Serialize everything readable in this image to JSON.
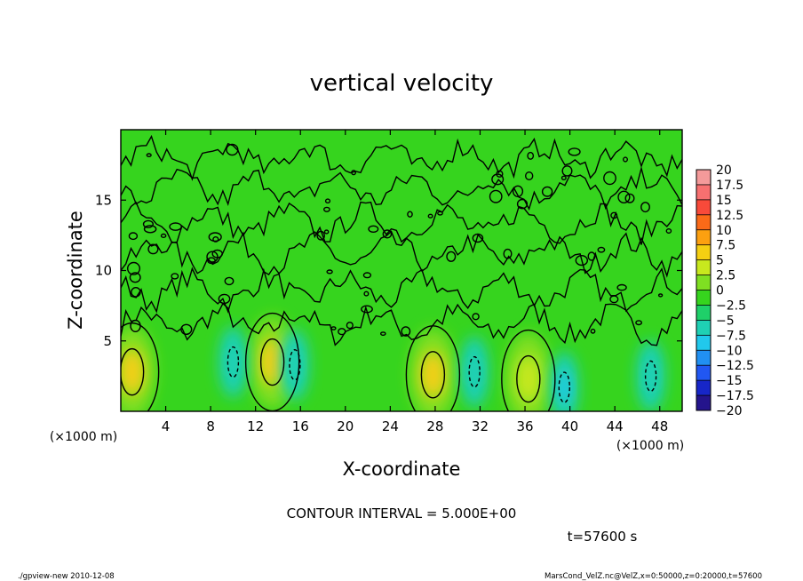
{
  "chart_data": {
    "type": "heatmap",
    "title": "vertical velocity",
    "xlabel": "X-coordinate",
    "ylabel": "Z-coordinate",
    "x_unit": "(×1000 m)",
    "y_unit": "(×1000 m)",
    "xlim": [
      0,
      50
    ],
    "ylim": [
      0,
      20
    ],
    "x_ticks": [
      4,
      8,
      12,
      16,
      20,
      24,
      28,
      32,
      36,
      40,
      44,
      48
    ],
    "y_ticks": [
      5,
      10,
      15
    ],
    "colorbar": {
      "levels": [
        "20",
        "17.5",
        "15",
        "12.5",
        "10",
        "7.5",
        "5",
        "2.5",
        "0",
        "−2.5",
        "−5",
        "−7.5",
        "−10",
        "−12.5",
        "−15",
        "−17.5",
        "−20"
      ],
      "colors": [
        "#f49a9a",
        "#f77070",
        "#f84a3a",
        "#fb6a18",
        "#fca010",
        "#f5cf12",
        "#c8e81e",
        "#7fdf22",
        "#36d41e",
        "#1fd069",
        "#1fd0b4",
        "#21c8ec",
        "#2190f2",
        "#2157f2",
        "#1726c8",
        "#24148c",
        "#5c1aa2"
      ]
    },
    "contour_interval": "CONTOUR INTERVAL = 5.000E+00",
    "time_label": "t=57600 s",
    "features": {
      "updrafts": [
        {
          "x": 1.0,
          "z": 2.8,
          "value": 7.0
        },
        {
          "x": 13.5,
          "z": 3.5,
          "value": 7.0
        },
        {
          "x": 27.8,
          "z": 2.6,
          "value": 7.0
        },
        {
          "x": 36.3,
          "z": 2.3,
          "value": 6.0
        }
      ],
      "downdrafts": [
        {
          "x": 10.0,
          "z": 3.5,
          "value": -5.5
        },
        {
          "x": 15.5,
          "z": 3.3,
          "value": -4.5
        },
        {
          "x": 31.5,
          "z": 2.8,
          "value": -5.0
        },
        {
          "x": 39.5,
          "z": 1.7,
          "value": -6.5
        },
        {
          "x": 47.2,
          "z": 2.5,
          "value": -6.0
        }
      ]
    }
  },
  "footer": {
    "left": "./gpview-new   2010-12-08",
    "right": "MarsCond_VelZ.nc@VelZ,x=0:50000,z=0:20000,t=57600"
  }
}
